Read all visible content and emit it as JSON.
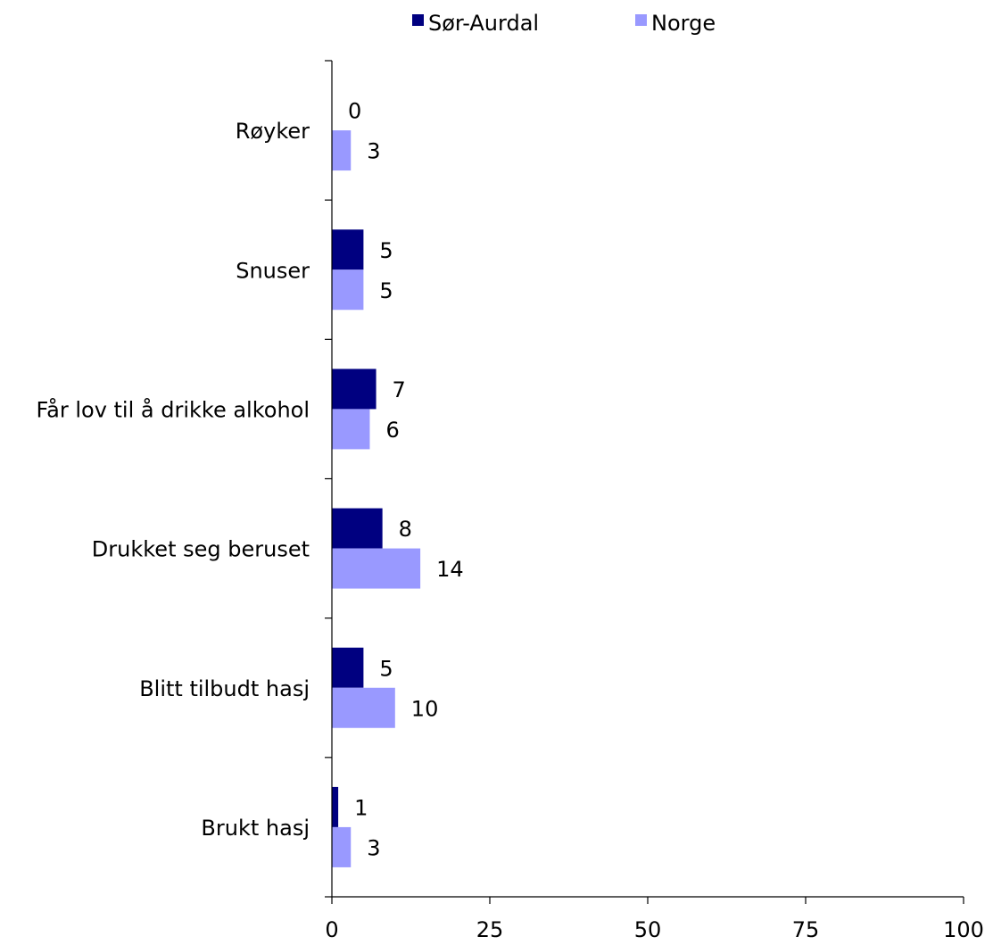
{
  "chart_data": {
    "type": "bar",
    "orientation": "horizontal",
    "categories": [
      "Røyker",
      "Snuser",
      "Får lov til å drikke alkohol",
      "Drukket seg beruset",
      "Blitt tilbudt hasj",
      "Brukt hasj"
    ],
    "series": [
      {
        "name": "Sør-Aurdal",
        "color": "#000080",
        "values": [
          0,
          5,
          7,
          8,
          5,
          1
        ]
      },
      {
        "name": "Norge",
        "color": "#9999ff",
        "values": [
          3,
          5,
          6,
          14,
          10,
          3
        ]
      }
    ],
    "data_labels": [
      [
        "0",
        "5",
        "7",
        "8",
        "5",
        "1"
      ],
      [
        "3",
        "5",
        "6",
        "14",
        "10",
        "3"
      ]
    ],
    "xlim": [
      0,
      100
    ],
    "xticks": [
      0,
      25,
      50,
      75,
      100
    ],
    "xtick_labels": [
      "0",
      "25",
      "50",
      "75",
      "100"
    ],
    "title": "",
    "xlabel": "",
    "ylabel": "",
    "grid": false,
    "legend_position": "top-center"
  }
}
